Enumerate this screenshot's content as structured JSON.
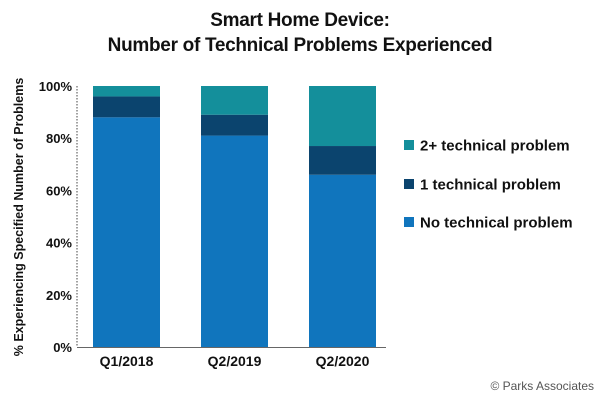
{
  "chart_data": {
    "type": "bar",
    "stacked": true,
    "title": "Smart Home Device:",
    "subtitle": "Number of Technical Problems Experienced",
    "xlabel": "",
    "ylabel": "% Experiencing Specified Number of Problems",
    "ylim": [
      0,
      100
    ],
    "yticks": [
      "0%",
      "20%",
      "40%",
      "60%",
      "80%",
      "100%"
    ],
    "categories": [
      "Q1/2018",
      "Q2/2019",
      "Q2/2020"
    ],
    "series": [
      {
        "name": "No technical problem",
        "color": "#1075bd",
        "values": [
          88,
          81,
          66
        ]
      },
      {
        "name": "1 technical problem",
        "color": "#0b446e",
        "values": [
          8,
          8,
          11
        ]
      },
      {
        "name": "2+ technical problem",
        "color": "#148f9b",
        "values": [
          4,
          11,
          23
        ]
      }
    ],
    "legend": {
      "placement": "right",
      "order": [
        "2+ technical problem",
        "1 technical problem",
        "No technical problem"
      ]
    },
    "grid": false
  },
  "footer": {
    "copyright": "© Parks Associates"
  }
}
